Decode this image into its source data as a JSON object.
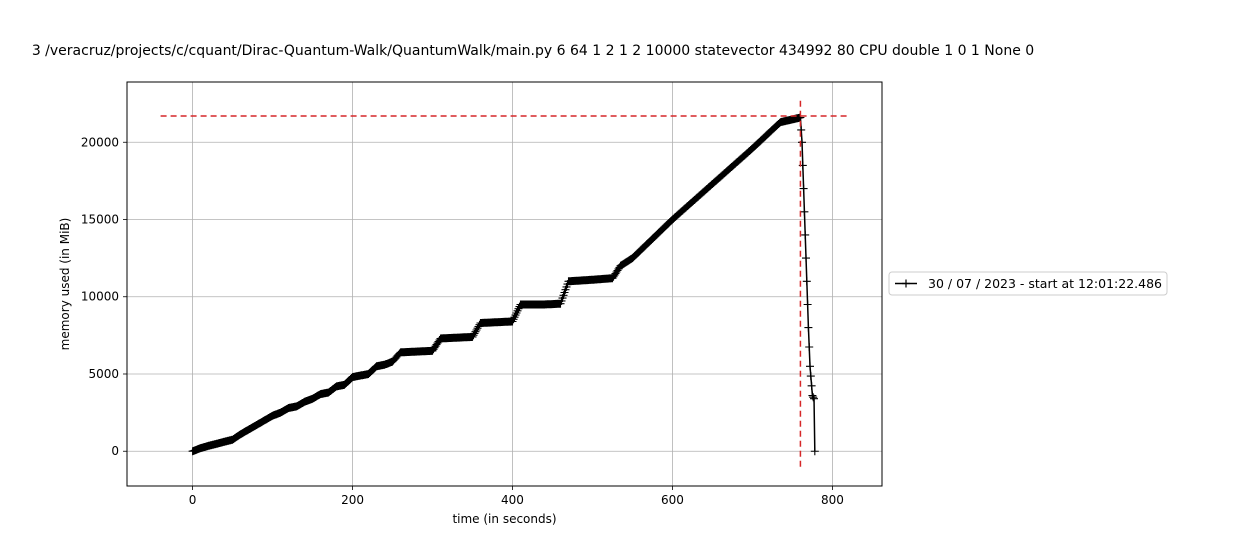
{
  "chart_data": {
    "type": "line",
    "title": "3 /veracruz/projects/c/cquant/Dirac-Quantum-Walk/QuantumWalk/main.py 6 64 1 2 1 2 10000 statevector 434992 80 CPU double 1 0 1 None 0",
    "xlabel": "time (in seconds)",
    "ylabel": "memory used (in MiB)",
    "xlim": [
      -82,
      862
    ],
    "ylim": [
      -2250,
      23900
    ],
    "xticks": [
      0,
      200,
      400,
      600,
      800
    ],
    "xtick_labels": [
      "0",
      "200",
      "400",
      "600",
      "800"
    ],
    "yticks": [
      0,
      5000,
      10000,
      15000,
      20000
    ],
    "ytick_labels": [
      "0",
      "5000",
      "10000",
      "15000",
      "20000"
    ],
    "grid": true,
    "legend": {
      "placement": "outside-right",
      "entries": [
        "30 / 07 / 2023 - start at 12:01:22.486"
      ]
    },
    "colors": {
      "series": "#000000",
      "reference_lines": "#d62728",
      "axes": "#000000",
      "grid": "#b0b0b0"
    },
    "reference_lines": {
      "horizontal": {
        "y": 21700,
        "x_range": [
          -40,
          820
        ]
      },
      "vertical": {
        "x": 760,
        "y_range": [
          -1000,
          22800
        ]
      }
    },
    "series": [
      {
        "name": "30 / 07 / 2023 - start at 12:01:22.486",
        "marker": "+",
        "color": "#000000",
        "points": [
          [
            0,
            0
          ],
          [
            10,
            200
          ],
          [
            20,
            350
          ],
          [
            30,
            480
          ],
          [
            40,
            620
          ],
          [
            50,
            750
          ],
          [
            60,
            1100
          ],
          [
            70,
            1400
          ],
          [
            80,
            1700
          ],
          [
            90,
            2000
          ],
          [
            100,
            2300
          ],
          [
            110,
            2500
          ],
          [
            120,
            2800
          ],
          [
            130,
            2900
          ],
          [
            140,
            3200
          ],
          [
            150,
            3400
          ],
          [
            160,
            3700
          ],
          [
            170,
            3800
          ],
          [
            180,
            4200
          ],
          [
            190,
            4300
          ],
          [
            200,
            4800
          ],
          [
            210,
            4900
          ],
          [
            220,
            5000
          ],
          [
            230,
            5500
          ],
          [
            240,
            5600
          ],
          [
            250,
            5800
          ],
          [
            260,
            6400
          ],
          [
            280,
            6450
          ],
          [
            300,
            6500
          ],
          [
            310,
            7300
          ],
          [
            330,
            7350
          ],
          [
            350,
            7400
          ],
          [
            360,
            8300
          ],
          [
            380,
            8350
          ],
          [
            400,
            8400
          ],
          [
            410,
            9500
          ],
          [
            440,
            9500
          ],
          [
            460,
            9550
          ],
          [
            470,
            11000
          ],
          [
            500,
            11100
          ],
          [
            525,
            11200
          ],
          [
            535,
            12000
          ],
          [
            550,
            12500
          ],
          [
            600,
            15000
          ],
          [
            650,
            17300
          ],
          [
            700,
            19600
          ],
          [
            735,
            21300
          ],
          [
            760,
            21600
          ],
          [
            762,
            20000
          ],
          [
            764,
            17000
          ],
          [
            766,
            14000
          ],
          [
            768,
            11000
          ],
          [
            770,
            8000
          ],
          [
            772,
            5500
          ],
          [
            775,
            3600
          ],
          [
            777,
            3400
          ],
          [
            778,
            0
          ]
        ]
      }
    ]
  }
}
